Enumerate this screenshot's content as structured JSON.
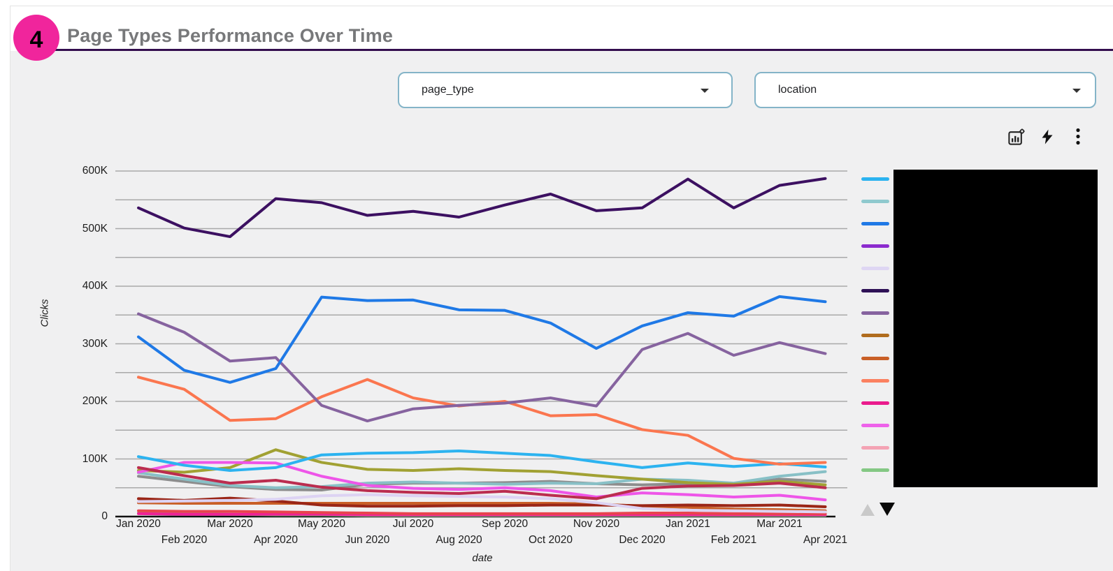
{
  "badge": {
    "number": "4"
  },
  "header": {
    "title": "Page Types Performance Over Time"
  },
  "controls": [
    {
      "label": "page_type"
    },
    {
      "label": "location"
    }
  ],
  "toolbar": {
    "icons": [
      "chart-settings-icon",
      "quick-action-icon",
      "more-options-icon"
    ]
  },
  "chart_data": {
    "type": "line",
    "title": "Page Types Performance Over Time",
    "xlabel": "date",
    "ylabel": "Clicks",
    "ylim": [
      0,
      600000
    ],
    "grid": true,
    "grid_step": 50000,
    "legend_position": "right",
    "y_tick_labels": [
      "0",
      "100K",
      "200K",
      "300K",
      "400K",
      "500K",
      "600K"
    ],
    "x_categories": [
      "Jan 2020",
      "Feb 2020",
      "Mar 2020",
      "Apr 2020",
      "May 2020",
      "Jun 2020",
      "Jul 2020",
      "Aug 2020",
      "Sep 2020",
      "Oct 2020",
      "Nov 2020",
      "Dec 2020",
      "Jan 2021",
      "Feb 2021",
      "Mar 2021",
      "Apr 2021"
    ],
    "series": [
      {
        "name": "series-green",
        "color": "#7dc57e",
        "values": [
          6000,
          5000,
          4000,
          3000,
          3000,
          2000,
          2000,
          2000,
          2000,
          2000,
          2000,
          2000,
          2000,
          2000,
          2000,
          2000
        ]
      },
      {
        "name": "series-hot-pink",
        "color": "#ef2196",
        "values": [
          5000,
          4000,
          4000,
          4000,
          4000,
          3000,
          3000,
          3000,
          3000,
          3000,
          3000,
          3000,
          3000,
          3000,
          3000,
          3000
        ]
      },
      {
        "name": "series-red",
        "color": "#e8444e",
        "values": [
          10000,
          9000,
          9000,
          8000,
          7000,
          6000,
          5000,
          5000,
          5000,
          5000,
          5000,
          6000,
          6000,
          5000,
          5000,
          5000
        ]
      },
      {
        "name": "series-orange-brown",
        "color": "#c95f27",
        "values": [
          24000,
          23000,
          23000,
          23000,
          23000,
          23000,
          23000,
          23000,
          23000,
          23000,
          22000,
          18000,
          16000,
          13000,
          12000,
          10000
        ]
      },
      {
        "name": "series-maroon",
        "color": "#9a2617",
        "values": [
          31000,
          28000,
          32000,
          27000,
          20000,
          18000,
          18000,
          19000,
          19000,
          20000,
          20000,
          19000,
          20000,
          19000,
          20000,
          17000
        ]
      },
      {
        "name": "series-lavender",
        "color": "#ddd3f3",
        "values": [
          26000,
          27000,
          28000,
          30000,
          36000,
          38000,
          36000,
          35000,
          34000,
          31000,
          24000,
          14000,
          11000,
          10000,
          9000,
          8000
        ]
      },
      {
        "name": "series-gray",
        "color": "#8d8d8d",
        "values": [
          70000,
          61000,
          52000,
          47000,
          46000,
          56000,
          58000,
          58000,
          59000,
          61000,
          57000,
          55000,
          57000,
          55000,
          65000,
          61000
        ]
      },
      {
        "name": "series-teal",
        "color": "#88c0c6",
        "values": [
          76000,
          65000,
          54000,
          50000,
          52000,
          58000,
          60000,
          58000,
          56000,
          58000,
          57000,
          65000,
          63000,
          58000,
          70000,
          78000
        ]
      },
      {
        "name": "series-olive",
        "color": "#a1a133",
        "values": [
          80000,
          77000,
          85000,
          116000,
          94000,
          82000,
          80000,
          83000,
          80000,
          78000,
          71000,
          65000,
          59000,
          56000,
          61000,
          55000
        ]
      },
      {
        "name": "series-orchid",
        "color": "#ee55e8",
        "values": [
          77000,
          94000,
          94000,
          93000,
          70000,
          54000,
          49000,
          47000,
          50000,
          45000,
          34000,
          41000,
          38000,
          34000,
          37000,
          29000
        ]
      },
      {
        "name": "series-crimson",
        "color": "#bb2d4f",
        "values": [
          85000,
          71000,
          58000,
          63000,
          51000,
          45000,
          42000,
          40000,
          44000,
          37000,
          31000,
          49000,
          53000,
          54000,
          58000,
          50000
        ]
      },
      {
        "name": "series-sky-blue",
        "color": "#2cb3f0",
        "values": [
          104000,
          89000,
          80000,
          85000,
          107000,
          110000,
          111000,
          114000,
          110000,
          106000,
          95000,
          85000,
          93000,
          87000,
          92000,
          86000
        ]
      },
      {
        "name": "series-coral",
        "color": "#fb764f",
        "values": [
          242000,
          221000,
          167000,
          170000,
          208000,
          238000,
          206000,
          192000,
          200000,
          175000,
          177000,
          151000,
          141000,
          101000,
          91000,
          94000
        ]
      },
      {
        "name": "series-muted-purple",
        "color": "#86639f",
        "values": [
          352000,
          320000,
          270000,
          276000,
          193000,
          166000,
          187000,
          193000,
          197000,
          206000,
          192000,
          290000,
          318000,
          280000,
          302000,
          283000
        ]
      },
      {
        "name": "series-blue",
        "color": "#1f79e6",
        "values": [
          312000,
          254000,
          233000,
          257000,
          381000,
          375000,
          376000,
          359000,
          358000,
          336000,
          292000,
          331000,
          354000,
          348000,
          382000,
          373000
        ]
      },
      {
        "name": "series-dark-violet",
        "color": "#3c1061",
        "values": [
          536000,
          501000,
          486000,
          552000,
          545000,
          523000,
          530000,
          520000,
          541000,
          560000,
          531000,
          536000,
          586000,
          536000,
          575000,
          587000
        ]
      }
    ]
  },
  "legend": {
    "swatch_colors": [
      "#2cb3f0",
      "#8fc9ce",
      "#1f79e6",
      "#8c2bce",
      "#ded6f3",
      "#2e1156",
      "#86639f",
      "#b06c1e",
      "#c95f27",
      "#fb8160",
      "#ea1b8d",
      "#ee62ea",
      "#f4a3b4",
      "#84c884"
    ],
    "labels_redacted": true
  }
}
